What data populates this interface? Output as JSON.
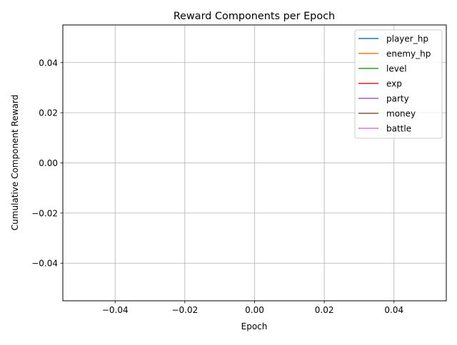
{
  "chart_data": {
    "type": "line",
    "title": "Reward Components per Epoch",
    "xlabel": "Epoch",
    "ylabel": "Cumulative Component Reward",
    "xlim": [
      -0.055,
      0.055
    ],
    "ylim": [
      -0.055,
      0.055
    ],
    "x_ticks": [
      -0.04,
      -0.02,
      0.0,
      0.02,
      0.04
    ],
    "x_tick_labels": [
      "−0.04",
      "−0.02",
      "0.00",
      "0.02",
      "0.04"
    ],
    "y_ticks": [
      -0.04,
      -0.02,
      0.0,
      0.02,
      0.04
    ],
    "y_tick_labels": [
      "−0.04",
      "−0.02",
      "0.00",
      "0.02",
      "0.04"
    ],
    "grid": true,
    "legend_position": "top-right",
    "x": [],
    "series": [
      {
        "name": "player_hp",
        "color": "#1f77b4",
        "values": []
      },
      {
        "name": "enemy_hp",
        "color": "#ff7f0e",
        "values": []
      },
      {
        "name": "level",
        "color": "#2ca02c",
        "values": []
      },
      {
        "name": "exp",
        "color": "#d62728",
        "values": []
      },
      {
        "name": "party",
        "color": "#9467bd",
        "values": []
      },
      {
        "name": "money",
        "color": "#8c564b",
        "values": []
      },
      {
        "name": "battle",
        "color": "#e377c2",
        "values": []
      }
    ]
  }
}
